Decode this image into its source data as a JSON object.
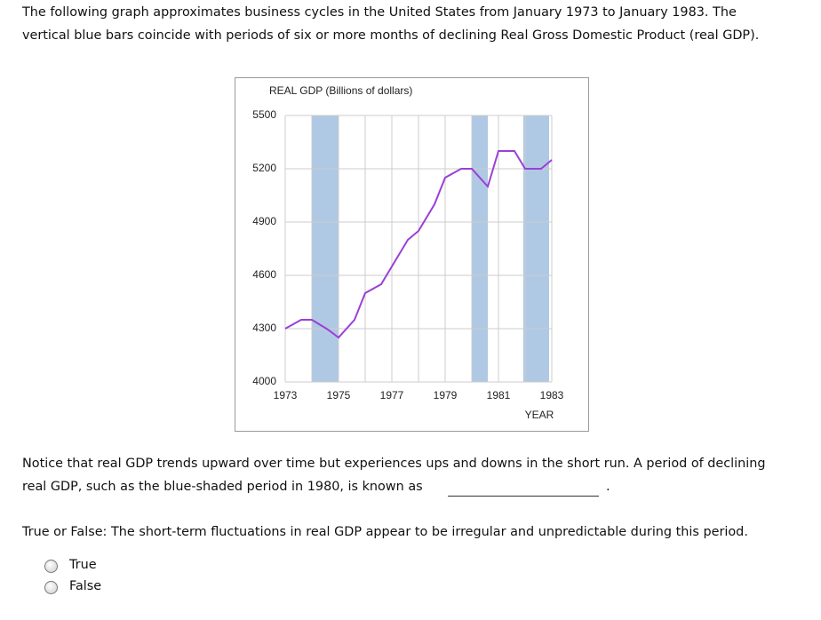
{
  "intro": [
    "The following graph approximates business cycles in the United States from January 1973 to January 1983. The",
    "vertical blue bars coincide with periods of six or more months of declining Real Gross Domestic Product (real GDP)."
  ],
  "chart_data": {
    "type": "line",
    "title": "REAL GDP (Billions of dollars)",
    "x_label": "YEAR",
    "x": [
      1973,
      1973.6,
      1974,
      1974.6,
      1975,
      1975.6,
      1976,
      1976.6,
      1977,
      1977.6,
      1978,
      1978.6,
      1979,
      1979.6,
      1980,
      1980.6,
      1981,
      1981.6,
      1982,
      1982.6,
      1983
    ],
    "series": [
      {
        "color": "#9b3fd6",
        "values": [
          4300,
          4350,
          4350,
          4295,
          4250,
          4350,
          4500,
          4550,
          4650,
          4800,
          4850,
          5000,
          5150,
          5200,
          5200,
          5100,
          5300,
          5300,
          5200,
          5200,
          5250
        ]
      }
    ],
    "shaded_periods": [
      [
        1974,
        1975
      ],
      [
        1980,
        1980.6
      ],
      [
        1981.93,
        1982.9
      ]
    ],
    "shade_color": "#afc9e4",
    "xlim": [
      1973,
      1983
    ],
    "xticks": [
      1973,
      1975,
      1977,
      1979,
      1981,
      1983
    ],
    "x_grid": [
      1973,
      1974,
      1975,
      1976,
      1977,
      1978,
      1979,
      1980,
      1981,
      1982,
      1983
    ],
    "ylim": [
      4000,
      5500
    ],
    "yticks": [
      4000,
      4300,
      4600,
      4900,
      5200,
      5500
    ],
    "grid": true
  },
  "question1": {
    "lines": [
      "Notice that real GDP trends upward over time but experiences ups and downs in the short run. A period of declining",
      "real GDP, such as the blue-shaded period in 1980, is known as"
    ],
    "end": "."
  },
  "question2": "True or False: The short-term fluctuations in real GDP appear to be irregular and unpredictable during this period.",
  "options": [
    "True",
    "False"
  ]
}
